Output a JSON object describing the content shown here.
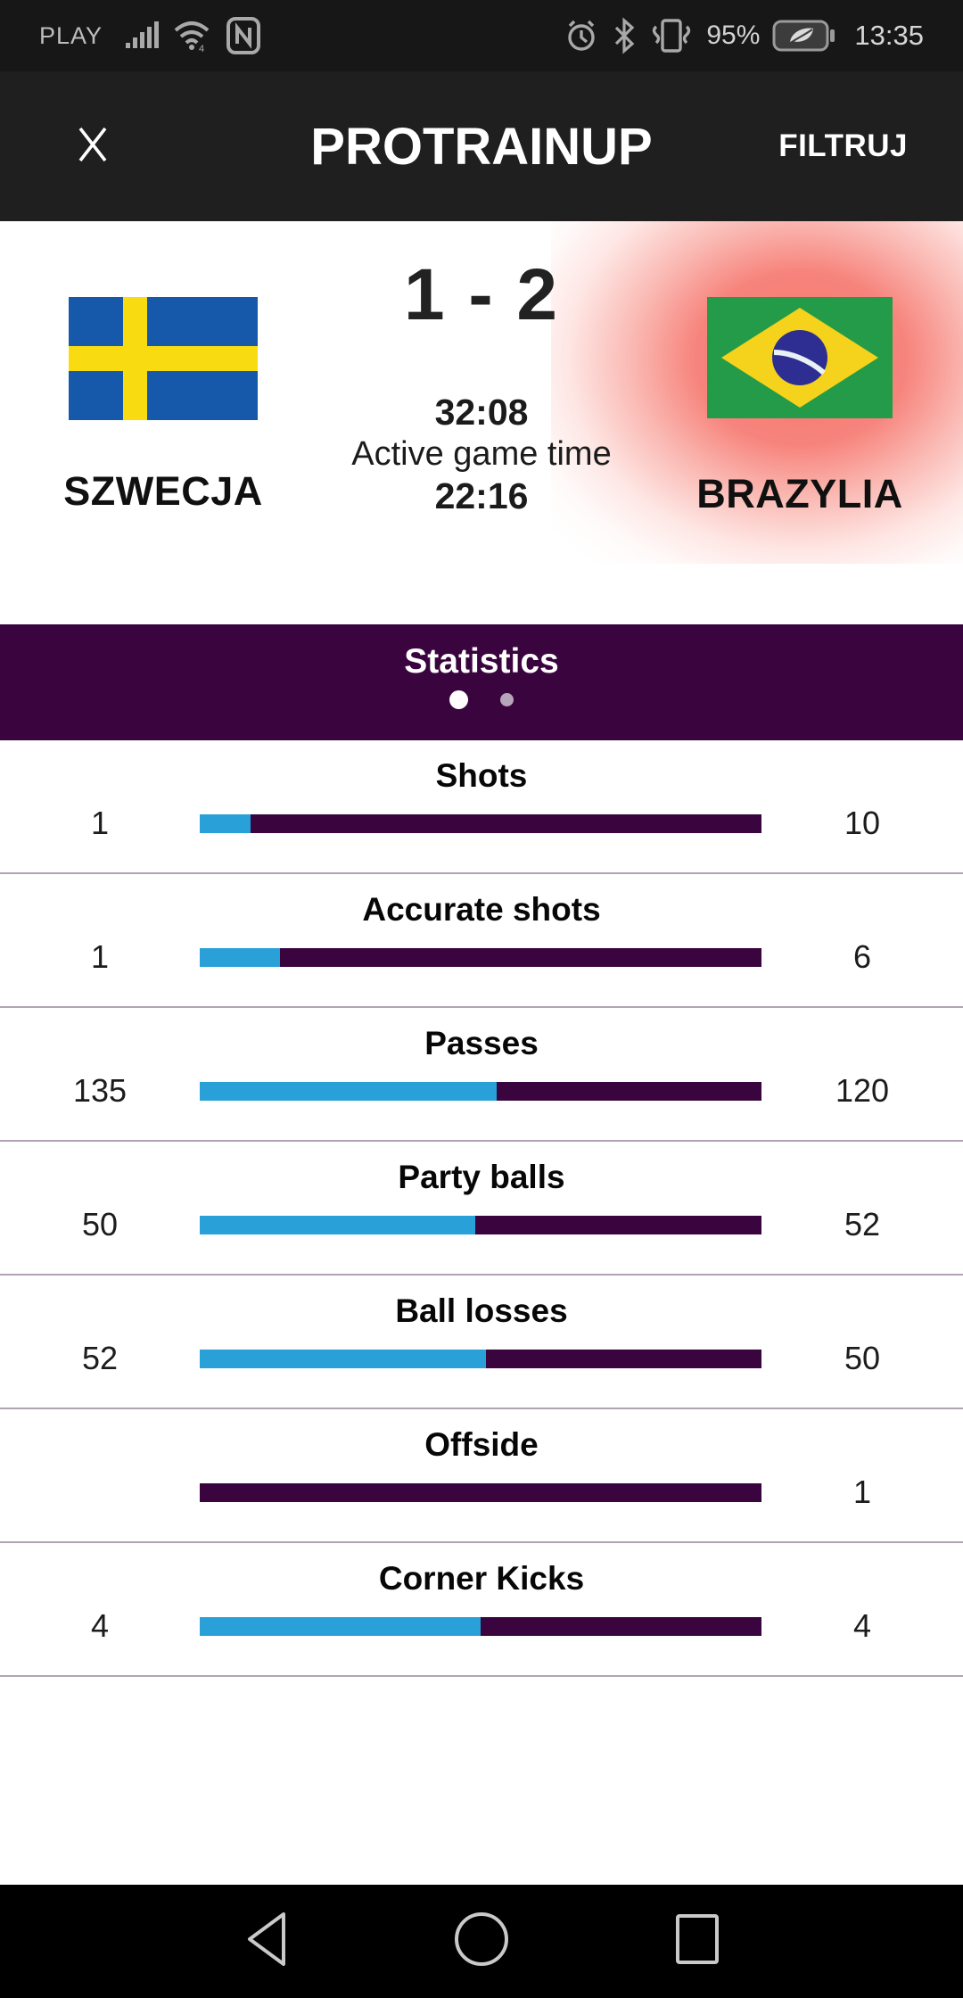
{
  "status_bar": {
    "carrier": "PLAY",
    "battery_percent": "95%",
    "time": "13:35",
    "icons": [
      "signal-bars-icon",
      "wifi-icon",
      "nfc-icon",
      "alarm-clock-icon",
      "bluetooth-icon",
      "vibrate-icon",
      "battery-eco-icon"
    ]
  },
  "header": {
    "title": "PROTRAINUP",
    "filter_label": "FILTRUJ",
    "close_icon": "close-x-icon"
  },
  "match": {
    "score": "1 - 2",
    "game_time": "32:08",
    "active_game_label": "Active game time",
    "active_game_time": "22:16",
    "home_team": {
      "name": "SZWECJA",
      "flag": "sweden-flag"
    },
    "away_team": {
      "name": "BRAZYLIA",
      "flag": "brazil-flag",
      "highlight": "red-glow"
    }
  },
  "statistics": {
    "title": "Statistics",
    "pagination": {
      "active_page": 1,
      "total_pages": 2
    },
    "rows": [
      {
        "label": "Shots",
        "home": "1",
        "away": "10",
        "home_pct": 9.1
      },
      {
        "label": "Accurate shots",
        "home": "1",
        "away": "6",
        "home_pct": 14.3
      },
      {
        "label": "Passes",
        "home": "135",
        "away": "120",
        "home_pct": 52.9
      },
      {
        "label": "Party balls",
        "home": "50",
        "away": "52",
        "home_pct": 49
      },
      {
        "label": "Ball losses",
        "home": "52",
        "away": "50",
        "home_pct": 51
      },
      {
        "label": "Offside",
        "home": "",
        "away": "1",
        "home_pct": 0
      },
      {
        "label": "Corner Kicks",
        "home": "4",
        "away": "4",
        "home_pct": 50
      }
    ]
  },
  "nav_bar": {
    "back_icon": "back-triangle-icon",
    "home_icon": "home-circle-icon",
    "recents_icon": "recents-square-icon"
  },
  "colors": {
    "accent_purple": "#3a043e",
    "accent_blue": "#29a1d8",
    "divider": "#b2a3b5",
    "glow_red": "#f3554a",
    "header_bg": "#1f1f1f",
    "status_bg": "#171717",
    "sweden_blue": "#1658a9",
    "sweden_yellow": "#f8db11",
    "brazil_green": "#249b48",
    "brazil_yellow": "#f5d21b",
    "brazil_navy": "#2e2e92"
  }
}
